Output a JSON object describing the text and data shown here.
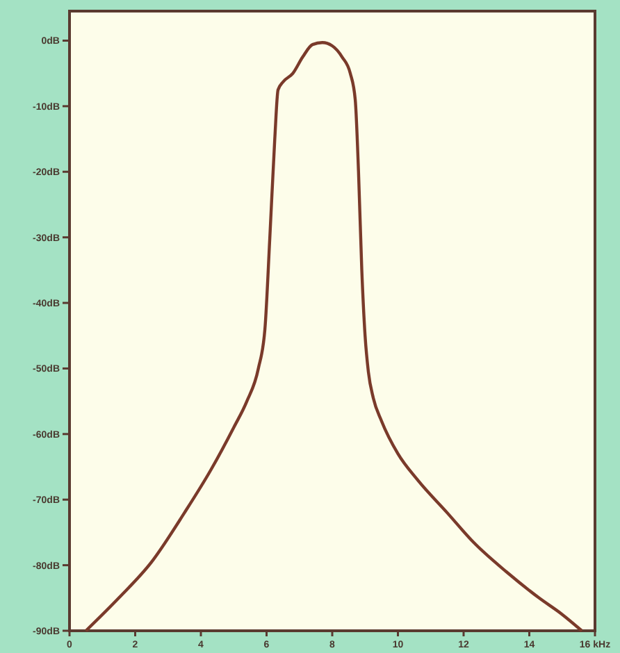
{
  "chart_data": {
    "type": "line",
    "x": [
      0.5,
      1.5,
      2.5,
      3.5,
      4.3,
      5.0,
      5.4,
      5.75,
      5.95,
      6.1,
      6.25,
      6.35,
      6.5,
      6.8,
      7.1,
      7.4,
      7.7,
      8.0,
      8.3,
      8.55,
      8.7,
      8.8,
      8.9,
      9.0,
      9.1,
      9.25,
      9.5,
      10.0,
      10.6,
      11.5,
      12.3,
      13.3,
      14.3,
      15.0,
      15.6
    ],
    "series": [
      {
        "color": "#7a3a2a",
        "values": [
          -90,
          -85,
          -79.5,
          -72,
          -65.5,
          -59,
          -55,
          -50,
          -44,
          -30,
          -15,
          -7.5,
          -6.3,
          -5,
          -2.5,
          -0.6,
          -0.3,
          -0.8,
          -2.5,
          -5,
          -9,
          -20,
          -35,
          -45,
          -50.5,
          -54.5,
          -58,
          -63,
          -67,
          -72,
          -76.5,
          -81,
          -85,
          -87.5,
          -90
        ]
      }
    ],
    "xlim": [
      0,
      16
    ],
    "ylim": [
      -90,
      4.5
    ],
    "xticks": [
      0,
      2,
      4,
      6,
      8,
      10,
      12,
      14,
      {
        "value": 16,
        "label": "16 kHz"
      }
    ],
    "yticks": [
      {
        "value": 0,
        "label": "0dB"
      },
      {
        "value": -10,
        "label": "-10dB"
      },
      {
        "value": -20,
        "label": "-20dB"
      },
      {
        "value": -30,
        "label": "-30dB"
      },
      {
        "value": -40,
        "label": "-40dB"
      },
      {
        "value": -50,
        "label": "-50dB"
      },
      {
        "value": -60,
        "label": "-60dB"
      },
      {
        "value": -70,
        "label": "-70dB"
      },
      {
        "value": -80,
        "label": "-80dB"
      },
      {
        "value": -90,
        "label": "-90dB"
      }
    ],
    "grid": false,
    "marker": "none",
    "line_style": "solid"
  }
}
